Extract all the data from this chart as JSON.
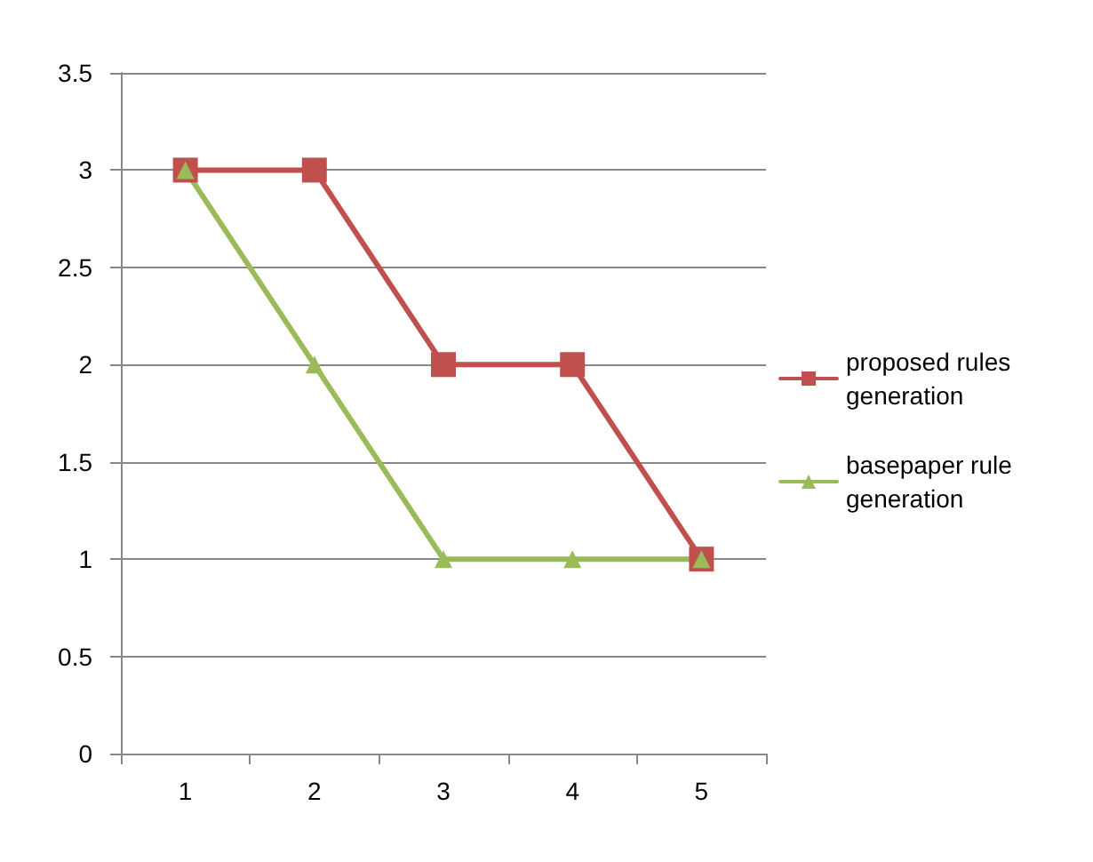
{
  "chart_data": {
    "type": "line",
    "categories": [
      "1",
      "2",
      "3",
      "4",
      "5"
    ],
    "series": [
      {
        "name": "proposed rules generation",
        "color": "#c0504d",
        "marker": "square",
        "values": [
          3,
          3,
          2,
          2,
          1
        ]
      },
      {
        "name": "basepaper rule generation",
        "color": "#9bbb59",
        "marker": "triangle",
        "values": [
          3,
          2,
          1,
          1,
          1
        ]
      }
    ],
    "ylim": [
      0,
      3.5
    ],
    "yticks": [
      0,
      0.5,
      1,
      1.5,
      2,
      2.5,
      3,
      3.5
    ],
    "grid": "y",
    "legend": "right",
    "line_style": "solid"
  }
}
